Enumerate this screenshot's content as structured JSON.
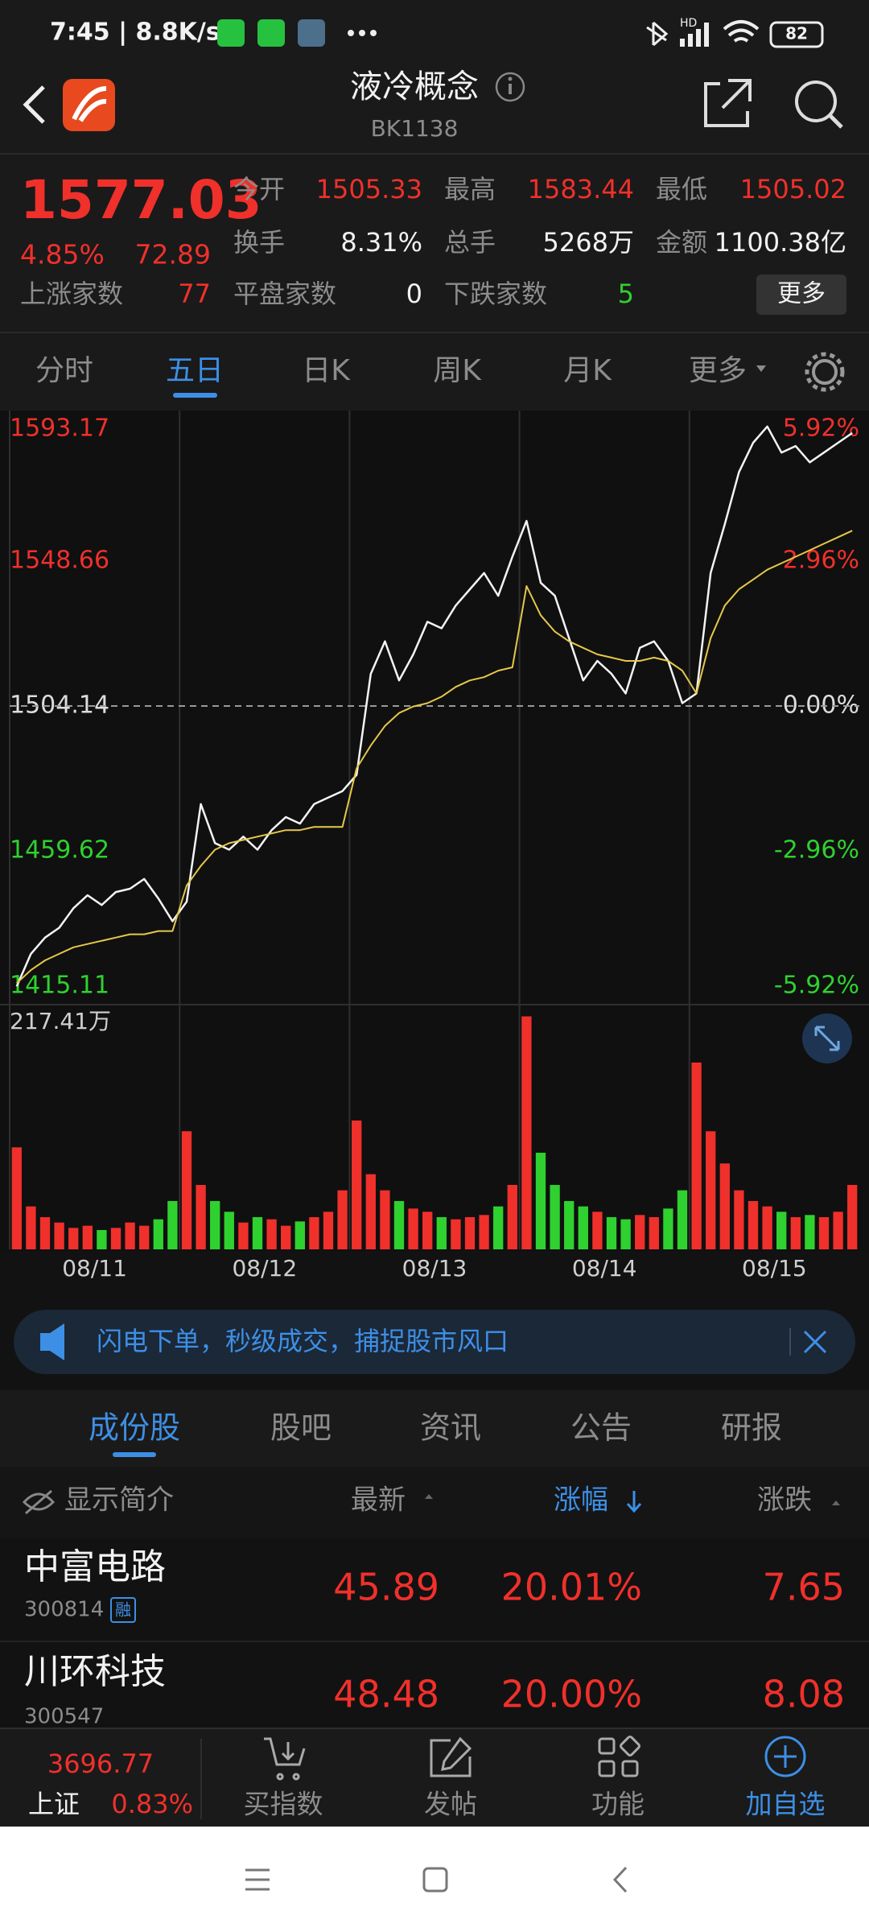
{
  "status_bar": {
    "time": "7:45 | 8.8K/s",
    "hd": "HD",
    "battery": "82"
  },
  "header": {
    "title": "液冷概念",
    "code": "BK1138"
  },
  "quote": {
    "price": "1577.03",
    "change_pct": "4.85%",
    "change": "72.89",
    "stats": [
      {
        "label": "今开",
        "value": "1505.33"
      },
      {
        "label": "最高",
        "value": "1583.44"
      },
      {
        "label": "最低",
        "value": "1505.02"
      },
      {
        "label": "换手",
        "value": "8.31%"
      },
      {
        "label": "总手",
        "value": "5268万"
      },
      {
        "label": "金额",
        "value": "1100.38亿"
      }
    ],
    "breadth": [
      {
        "label": "上涨家数",
        "value": "77"
      },
      {
        "label": "平盘家数",
        "value": "0"
      },
      {
        "label": "下跌家数",
        "value": "5"
      }
    ],
    "more_button": "更多"
  },
  "period_tabs": [
    "分时",
    "五日",
    "日K",
    "周K",
    "月K",
    "更多"
  ],
  "chart_data": {
    "type": "line",
    "days": [
      "08/11",
      "08/12",
      "08/13",
      "08/14",
      "08/15"
    ],
    "series": [
      {
        "color": "#f4f4f4",
        "values": [
          1418,
          1428,
          1433,
          1436,
          1442,
          1446,
          1443,
          1447,
          1448,
          1451,
          1445,
          1438,
          1444,
          1474,
          1462,
          1460,
          1464,
          1460,
          1466,
          1470,
          1468,
          1474,
          1476,
          1478,
          1483,
          1514,
          1524,
          1512,
          1520,
          1530,
          1528,
          1535,
          1540,
          1545,
          1538,
          1550,
          1561,
          1542,
          1538,
          1525,
          1512,
          1518,
          1514,
          1508,
          1522,
          1524,
          1518,
          1505,
          1508,
          1545,
          1560,
          1576,
          1585,
          1590,
          1582,
          1584,
          1579,
          1582,
          1585,
          1588
        ]
      },
      {
        "color": "#e6c84a",
        "values": [
          1419,
          1423,
          1426,
          1428,
          1430,
          1431,
          1432,
          1433,
          1434,
          1434,
          1435,
          1435,
          1449,
          1455,
          1460,
          1462,
          1463,
          1464,
          1465,
          1466,
          1466,
          1467,
          1467,
          1467,
          1485,
          1492,
          1498,
          1502,
          1504,
          1505,
          1507,
          1510,
          1512,
          1513,
          1515,
          1516,
          1541,
          1532,
          1527,
          1524,
          1522,
          1520,
          1519,
          1518,
          1518,
          1519,
          1518,
          1515,
          1508,
          1525,
          1535,
          1540,
          1543,
          1546,
          1548,
          1550,
          1552,
          1554,
          1556,
          1558
        ]
      }
    ],
    "ylim": [
      1415.11,
      1593.17
    ],
    "yticks": [
      1593.17,
      1548.66,
      1504.14,
      1459.62,
      1415.11
    ],
    "y2lim": [
      -5.92,
      5.92
    ],
    "y2ticks": [
      {
        "value": 5.92,
        "label": "5.92%"
      },
      {
        "value": 2.96,
        "label": "2.96%"
      },
      {
        "value": 0,
        "label": "0.00%"
      },
      {
        "value": -2.96,
        "label": "-2.96%"
      },
      {
        "value": -5.92,
        "label": "-5.92%"
      }
    ],
    "up_color": "#f0302b",
    "down_color": "#2fd12f",
    "volume": {
      "values": [
        95,
        40,
        30,
        25,
        20,
        22,
        18,
        20,
        25,
        22,
        28,
        45,
        110,
        60,
        45,
        35,
        25,
        30,
        28,
        22,
        26,
        30,
        35,
        55,
        120,
        70,
        55,
        45,
        38,
        35,
        30,
        28,
        30,
        32,
        40,
        60,
        217,
        90,
        60,
        45,
        40,
        35,
        30,
        28,
        32,
        30,
        38,
        55,
        174,
        110,
        80,
        55,
        45,
        40,
        35,
        30,
        32,
        30,
        35,
        60
      ],
      "ylim": [
        0,
        217.41
      ],
      "yticks": [
        {
          "value": 217.41,
          "label": "217.41万"
        }
      ]
    }
  },
  "banner": {
    "text": "闪电下单，秒级成交，捕捉股市风口"
  },
  "list_tabs": [
    "成份股",
    "股吧",
    "资讯",
    "公告",
    "研报"
  ],
  "table": {
    "header": [
      "显示简介",
      "最新",
      "涨幅",
      "涨跌"
    ],
    "rows": [
      {
        "name": "中富电路",
        "code": "300814",
        "tag": "融",
        "price": "45.89",
        "pct": "20.01%",
        "change": "7.65"
      },
      {
        "name": "川环科技",
        "code": "300547",
        "price": "48.48",
        "pct": "20.00%",
        "change": "8.08"
      }
    ]
  },
  "bottom_nav": {
    "index_value": "3696.77",
    "index_name": "上证",
    "index_pct": "0.83%",
    "items": [
      "买指数",
      "发帖",
      "功能",
      "加自选"
    ]
  }
}
